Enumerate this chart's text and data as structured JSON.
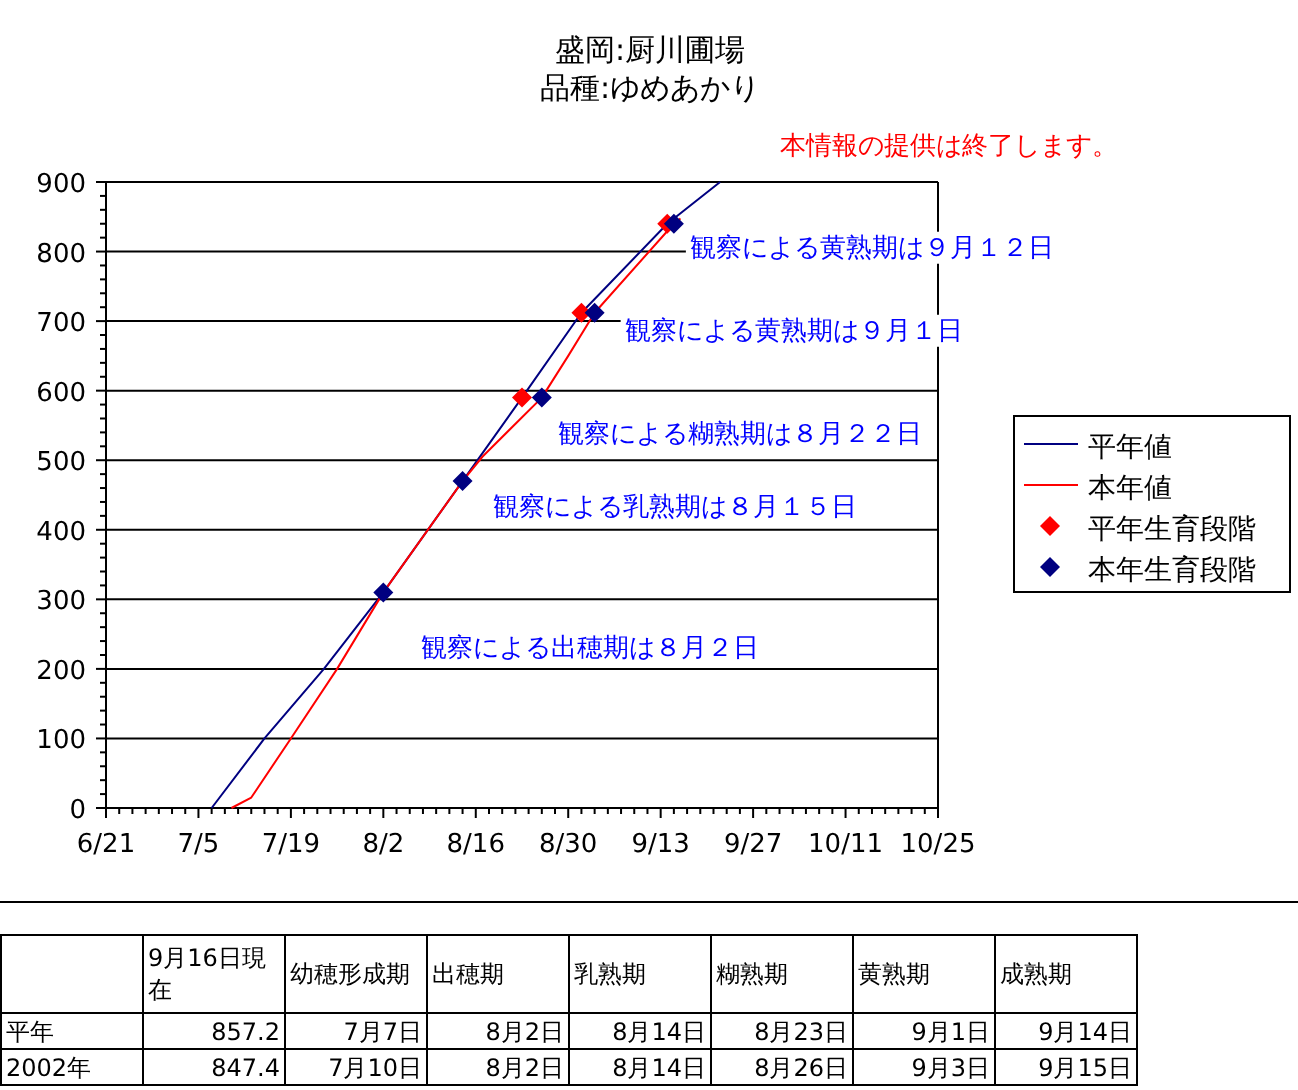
{
  "chart_data": {
    "type": "line",
    "title": "盛岡:厨川圃場",
    "subtitle": "品種:ゆめあかり",
    "xlim": [
      "--06-21",
      "--10-25"
    ],
    "xticks": [
      {
        "value": "--06-21",
        "label": "6/21"
      },
      {
        "value": "--07-05",
        "label": "7/5"
      },
      {
        "value": "--07-19",
        "label": "7/19"
      },
      {
        "value": "--08-02",
        "label": "8/2"
      },
      {
        "value": "--08-16",
        "label": "8/16"
      },
      {
        "value": "--08-30",
        "label": "8/30"
      },
      {
        "value": "--09-13",
        "label": "9/13"
      },
      {
        "value": "--09-27",
        "label": "9/27"
      },
      {
        "value": "--10-11",
        "label": "10/11"
      },
      {
        "value": "--10-25",
        "label": "10/25"
      }
    ],
    "ylim": [
      0,
      900
    ],
    "yticks": [
      0,
      100,
      200,
      300,
      400,
      500,
      600,
      700,
      800,
      900
    ],
    "grid": "y",
    "legend": "right",
    "series": [
      {
        "name": "平年値",
        "color": "#000080",
        "marker": "none",
        "x": [
          "--07-07",
          "--07-15",
          "--07-24",
          "--08-02",
          "--08-14",
          "--08-23",
          "--09-01",
          "--09-14",
          "--09-22"
        ],
        "values": [
          0,
          100,
          200,
          310,
          470,
          590,
          712,
          840,
          900
        ]
      },
      {
        "name": "本年値",
        "color": "#ff0000",
        "marker": "none",
        "x": [
          "--07-10",
          "--07-13",
          "--07-19",
          "--07-26",
          "--08-02",
          "--08-14",
          "--08-17",
          "--08-26",
          "--08-30",
          "--09-03",
          "--09-15",
          "--09-16"
        ],
        "values": [
          0,
          15,
          100,
          200,
          310,
          470,
          505,
          590,
          650,
          712,
          840,
          847.4
        ]
      },
      {
        "name": "平年生育段階",
        "type": "scatter",
        "color": "#ff0000",
        "marker": "diamond",
        "x": [
          "--08-23",
          "--09-01",
          "--09-14"
        ],
        "values": [
          590,
          712,
          840
        ]
      },
      {
        "name": "本年生育段階",
        "type": "scatter",
        "color": "#000080",
        "marker": "diamond",
        "x": [
          "--08-02",
          "--08-14",
          "--08-26",
          "--09-03",
          "--09-15"
        ],
        "values": [
          310,
          470,
          590,
          712,
          840
        ]
      }
    ],
    "annotations": [
      {
        "text": "観察による出穂期は８月２日",
        "x": "--08-02",
        "y": 310
      },
      {
        "text": "観察による乳熟期は８月１５日",
        "x": "--08-14",
        "y": 470
      },
      {
        "text": "観察による糊熟期は８月２２日",
        "x": "--08-26",
        "y": 590
      },
      {
        "text": "観察による黄熟期は９月１日",
        "x": "--09-03",
        "y": 712
      },
      {
        "text": "観察による黄熟期は９月１２日",
        "x": "--09-15",
        "y": 840
      },
      "本情報の提供は終了します。",
      "9月16日現在",
      "幼穂形成期",
      "出穂期",
      "乳熟期",
      "糊熟期",
      "黄熟期",
      "成熟期",
      "平年",
      "857.2",
      "7月7日",
      "8月2日",
      "8月14日",
      "8月23日",
      "9月1日",
      "9月14日",
      "2002年",
      "847.4",
      "7月10日",
      "8月2日",
      "8月14日",
      "8月26日",
      "9月3日",
      "9月15日"
    ]
  }
}
